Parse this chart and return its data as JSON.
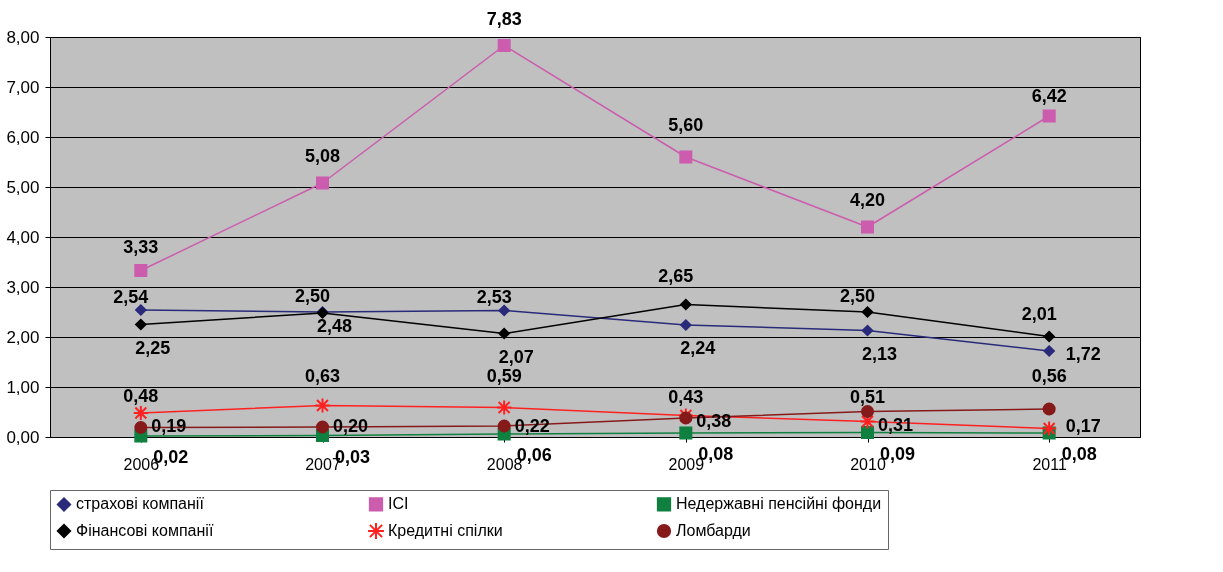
{
  "chart_data": {
    "type": "line",
    "categories": [
      "2006",
      "2007",
      "2008",
      "2009",
      "2010",
      "2011"
    ],
    "ylim": [
      0,
      8
    ],
    "yticks": [
      {
        "value": 0,
        "label": "0,00"
      },
      {
        "value": 1,
        "label": "1,00"
      },
      {
        "value": 2,
        "label": "2,00"
      },
      {
        "value": 3,
        "label": "3,00"
      },
      {
        "value": 4,
        "label": "4,00"
      },
      {
        "value": 5,
        "label": "5,00"
      },
      {
        "value": 6,
        "label": "6,00"
      },
      {
        "value": 7,
        "label": "7,00"
      },
      {
        "value": 8,
        "label": "8,00"
      }
    ],
    "grid": "y",
    "legend": "bottom",
    "series": [
      {
        "name": "страхові компанії",
        "color": "#2a2a7a",
        "marker": "diamond",
        "values": [
          2.54,
          2.5,
          2.53,
          2.24,
          2.13,
          1.72
        ],
        "value_labels": [
          "2,54",
          "2,50",
          "2,53",
          "2,24",
          "2,13",
          "1,72"
        ]
      },
      {
        "name": "ІСІ",
        "color": "#cc5cad",
        "marker": "square",
        "values": [
          3.33,
          5.08,
          7.83,
          5.6,
          4.2,
          6.42
        ],
        "value_labels": [
          "3,33",
          "5,08",
          "7,83",
          "5,60",
          "4,20",
          "6,42"
        ]
      },
      {
        "name": "Недержавні пенсійні фонди",
        "color": "#108040",
        "marker": "square",
        "values": [
          0.02,
          0.03,
          0.06,
          0.08,
          0.09,
          0.08
        ],
        "value_labels": [
          "0,02",
          "0,03",
          "0,06",
          "0,08",
          "0,09",
          "0,08"
        ]
      },
      {
        "name": "Фінансові компанії",
        "color": "#000000",
        "marker": "diamond",
        "values": [
          2.25,
          2.48,
          2.07,
          2.65,
          2.5,
          2.01
        ],
        "value_labels": [
          "2,25",
          "2,48",
          "2,07",
          "2,65",
          "2,50",
          "2,01"
        ]
      },
      {
        "name": "Кредитні спілки",
        "color": "#ff2020",
        "marker": "cross",
        "values": [
          0.48,
          0.63,
          0.59,
          0.43,
          0.31,
          0.17
        ],
        "value_labels": [
          "0,48",
          "0,63",
          "0,59",
          "0,43",
          "0,31",
          "0,17"
        ]
      },
      {
        "name": "Ломбарди",
        "color": "#861a1a",
        "marker": "circle",
        "values": [
          0.19,
          0.2,
          0.22,
          0.38,
          0.51,
          0.56
        ],
        "value_labels": [
          "0,19",
          "0,20",
          "0,22",
          "0,38",
          "0,51",
          "0,56"
        ]
      }
    ]
  }
}
